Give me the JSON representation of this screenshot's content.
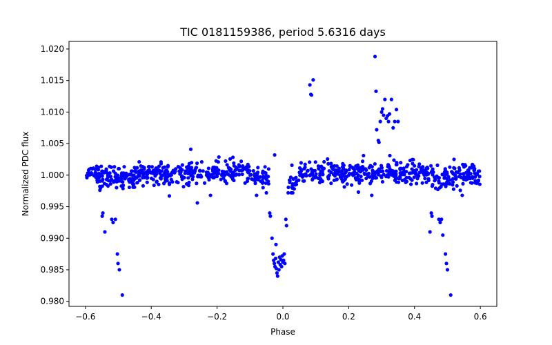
{
  "chart_data": {
    "type": "scatter",
    "title": "TIC 0181159386, period 5.6316 days",
    "xlabel": "Phase",
    "ylabel": "Normalized PDC flux",
    "xlim": [
      -0.65,
      0.65
    ],
    "ylim": [
      0.9792,
      1.0212
    ],
    "xticks": [
      -0.6,
      -0.4,
      -0.2,
      0.0,
      0.2,
      0.4,
      0.6
    ],
    "xtick_labels": [
      "−0.6",
      "−0.4",
      "−0.2",
      "0.0",
      "0.2",
      "0.4",
      "0.6"
    ],
    "yticks": [
      0.98,
      0.985,
      0.99,
      0.995,
      1.0,
      1.005,
      1.01,
      1.015,
      1.02
    ],
    "ytick_labels": [
      "0.980",
      "0.985",
      "0.990",
      "0.995",
      "1.000",
      "1.005",
      "1.010",
      "1.015",
      "1.020"
    ],
    "grid": false,
    "legend": "none",
    "marker_color": "#0000ff",
    "series": [
      {
        "points": [
          [
            -0.549,
            0.9935
          ],
          [
            -0.547,
            0.994
          ],
          [
            -0.541,
            0.991
          ],
          [
            -0.52,
            0.993
          ],
          [
            -0.516,
            0.9925
          ],
          [
            -0.509,
            0.993
          ],
          [
            -0.503,
            0.9875
          ],
          [
            -0.501,
            0.986
          ],
          [
            -0.497,
            0.985
          ],
          [
            -0.488,
            0.981
          ],
          [
            -0.04,
            0.994
          ],
          [
            -0.038,
            0.9935
          ],
          [
            -0.033,
            0.99
          ],
          [
            -0.03,
            0.9875
          ],
          [
            -0.028,
            0.9865
          ],
          [
            -0.026,
            0.986
          ],
          [
            -0.024,
            0.9855
          ],
          [
            -0.022,
            0.9868
          ],
          [
            -0.02,
            0.9852
          ],
          [
            -0.018,
            0.9845
          ],
          [
            -0.016,
            0.984
          ],
          [
            -0.014,
            0.9862
          ],
          [
            -0.012,
            0.985
          ],
          [
            -0.01,
            0.987
          ],
          [
            -0.008,
            0.9858
          ],
          [
            -0.006,
            0.9866
          ],
          [
            -0.004,
            0.9855
          ],
          [
            -0.002,
            0.9872
          ],
          [
            0.0,
            0.9862
          ],
          [
            0.002,
            0.9865
          ],
          [
            0.004,
            0.9875
          ],
          [
            0.006,
            0.986
          ],
          [
            0.009,
            0.993
          ],
          [
            0.011,
            0.992
          ],
          [
            -0.021,
            0.989
          ],
          [
            0.082,
            1.0143
          ],
          [
            0.085,
            1.0128
          ],
          [
            0.087,
            1.0127
          ],
          [
            0.092,
            1.0151
          ],
          [
            0.28,
            1.0188
          ],
          [
            0.283,
            1.0133
          ],
          [
            0.285,
            1.0072
          ],
          [
            0.29,
            1.0055
          ],
          [
            0.292,
            1.0052
          ],
          [
            0.296,
            1.0085
          ],
          [
            0.3,
            1.01
          ],
          [
            0.303,
            1.0105
          ],
          [
            0.306,
            1.0095
          ],
          [
            0.31,
            1.012
          ],
          [
            0.314,
            1.009
          ],
          [
            0.318,
            1.0094
          ],
          [
            0.321,
            1.0085
          ],
          [
            0.324,
            1.0097
          ],
          [
            0.33,
            1.012
          ],
          [
            0.335,
            1.0075
          ],
          [
            0.34,
            1.0085
          ],
          [
            0.345,
            1.0104
          ],
          [
            0.35,
            1.0085
          ],
          [
            0.447,
            0.991
          ],
          [
            0.451,
            0.994
          ],
          [
            0.453,
            0.9935
          ],
          [
            0.474,
            0.993
          ],
          [
            0.478,
            0.9925
          ],
          [
            0.482,
            0.993
          ],
          [
            0.486,
            0.9905
          ],
          [
            0.494,
            0.9875
          ],
          [
            0.497,
            0.986
          ],
          [
            0.5,
            0.985
          ],
          [
            0.51,
            0.981
          ],
          [
            -0.345,
            0.9967
          ],
          [
            -0.26,
            0.9956
          ],
          [
            -0.22,
            0.9968
          ],
          [
            -0.08,
            0.9968
          ],
          [
            0.016,
            0.9972
          ],
          [
            0.03,
            0.9972
          ],
          [
            0.27,
            0.9968
          ],
          [
            0.545,
            0.9968
          ],
          [
            -0.28,
            1.0041
          ],
          [
            -0.025,
            1.0032
          ],
          [
            0.245,
            1.0031
          ],
          [
            0.325,
            1.0031
          ],
          [
            0.52,
            1.0025
          ]
        ]
      }
    ]
  }
}
